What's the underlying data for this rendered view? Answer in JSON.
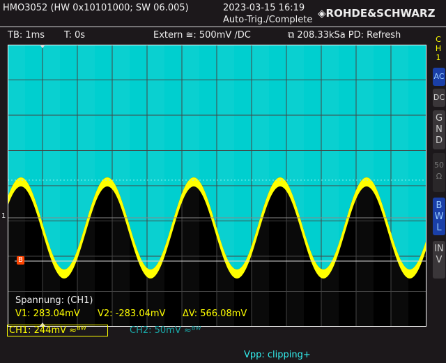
{
  "header": {
    "device": "HMO3052 (HW 0x10101000; SW 06.005)",
    "datetime": "2023-03-15 16:19",
    "trigger_status": "Auto-Trig./Complete",
    "brand": "ROHDE&SCHWARZ"
  },
  "status": {
    "timebase": "TB: 1ms",
    "time": "T: 0s",
    "trigger": "Extern ≅: 500mV ∕DC",
    "sample": "208.33kSa PD: Refresh"
  },
  "side": {
    "channel": "CH1",
    "ac": "AC",
    "dc": "DC",
    "gnd": "GND",
    "ohm": "50Ω",
    "bwl": "BWL",
    "inv": "INV"
  },
  "measure": {
    "title": "Spannung: (CH1)",
    "v1": "V1: 283.04mV",
    "v2": "V2: -283.04mV",
    "dv": "ΔV: 566.08mV"
  },
  "channels": {
    "ch1": "CH1: 244mV ≈ᴮᵂ",
    "ch2": "CH2: 50mV ≈ᴮᵂ"
  },
  "footer": {
    "vpp": "Vpp: clipping+"
  },
  "markers": {
    "ch1": "1",
    "cursor": "B"
  },
  "colors": {
    "ch1": "#ffff00",
    "ch2": "#00d0d0",
    "accent": "#1a3fa8"
  }
}
